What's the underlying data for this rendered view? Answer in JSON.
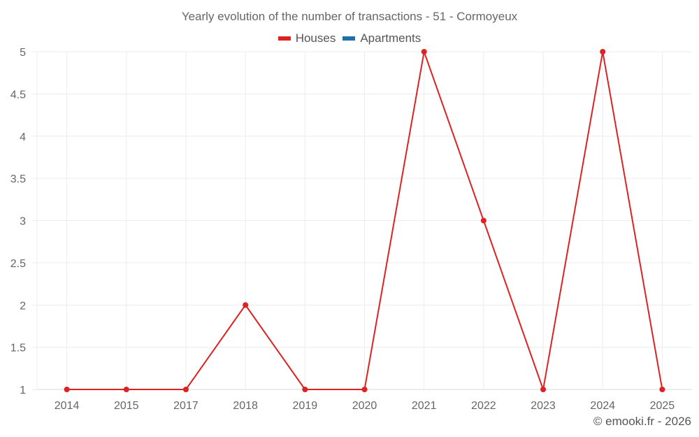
{
  "title": "Yearly evolution of the number of transactions - 51 - Cormoyeux",
  "legend": [
    {
      "label": "Houses",
      "color": "#dd2222"
    },
    {
      "label": "Apartments",
      "color": "#1f6fa8"
    }
  ],
  "credit": "© emooki.fr - 2026",
  "chart_data": {
    "type": "line",
    "title": "Yearly evolution of the number of transactions - 51 - Cormoyeux",
    "xlabel": "",
    "ylabel": "",
    "categories": [
      "2014",
      "2015",
      "2017",
      "2018",
      "2019",
      "2020",
      "2021",
      "2022",
      "2023",
      "2024",
      "2025"
    ],
    "series": [
      {
        "name": "Houses",
        "color": "#dd2222",
        "values": [
          1,
          1,
          1,
          2,
          1,
          1,
          5,
          3,
          1,
          5,
          1
        ]
      },
      {
        "name": "Apartments",
        "color": "#1f6fa8",
        "values": []
      }
    ],
    "yticks": [
      "1",
      "1.5",
      "2",
      "2.5",
      "3",
      "3.5",
      "4",
      "4.5",
      "5"
    ],
    "ylim": [
      1,
      5
    ],
    "grid": true,
    "legend_position": "top"
  }
}
